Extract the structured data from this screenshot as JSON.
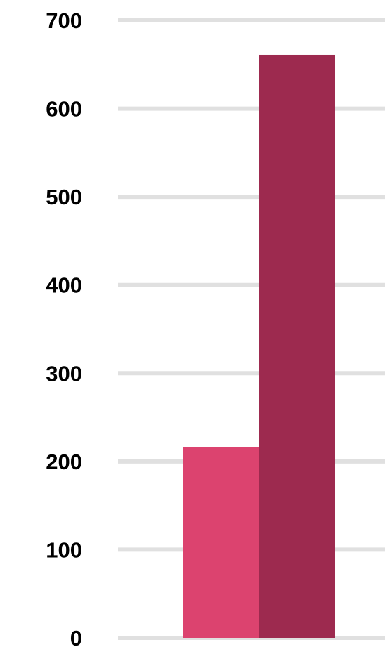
{
  "chart_data": {
    "type": "bar",
    "title": "",
    "xlabel": "",
    "ylabel": "",
    "ylim": [
      0,
      700
    ],
    "y_ticks": [
      "0",
      "100",
      "200",
      "300",
      "400",
      "500",
      "600",
      "700"
    ],
    "grid": true,
    "categories": [
      ""
    ],
    "series": [
      {
        "values": [
          216
        ],
        "color": "#dc436f"
      },
      {
        "values": [
          661
        ],
        "color": "#9d2a4f"
      }
    ],
    "gridline_color": "#e0e0e0"
  }
}
